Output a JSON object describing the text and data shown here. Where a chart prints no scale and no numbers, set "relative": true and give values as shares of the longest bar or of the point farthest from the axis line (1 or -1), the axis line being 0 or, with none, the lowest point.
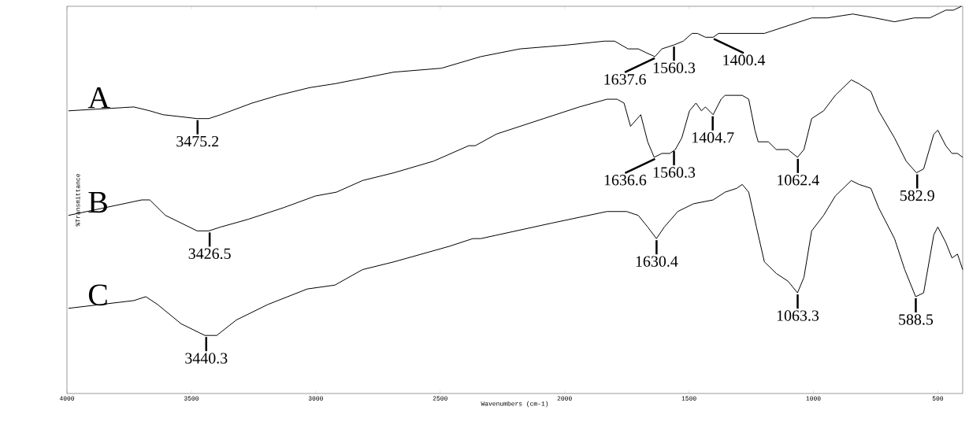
{
  "chart_data": {
    "type": "line",
    "relative": true,
    "xlabel": "Wavenumbers (cm-1)",
    "ylabel": "%Transmittance",
    "xlim": [
      4000,
      400
    ],
    "xticks": [
      4000,
      3500,
      3000,
      2500,
      2000,
      1500,
      1000,
      500
    ],
    "series": [
      {
        "name": "A",
        "color": "#000000",
        "x": [
          3994,
          3731,
          3667,
          3614,
          3477,
          3430,
          3382,
          3256,
          3151,
          3024,
          2923,
          2844,
          2686,
          2495,
          2337,
          2179,
          1989,
          1840,
          1799,
          1745,
          1704,
          1672,
          1637,
          1609,
          1561,
          1523,
          1488,
          1466,
          1434,
          1403,
          1381,
          1355,
          1229,
          1197,
          1102,
          1007,
          943,
          842,
          753,
          674,
          595,
          532,
          468,
          437,
          405
        ],
        "values": [
          0.73,
          0.74,
          0.73,
          0.72,
          0.71,
          0.71,
          0.72,
          0.75,
          0.77,
          0.79,
          0.8,
          0.81,
          0.83,
          0.84,
          0.87,
          0.89,
          0.9,
          0.91,
          0.91,
          0.89,
          0.89,
          0.88,
          0.87,
          0.89,
          0.9,
          0.91,
          0.93,
          0.93,
          0.92,
          0.92,
          0.93,
          0.93,
          0.93,
          0.93,
          0.95,
          0.97,
          0.97,
          0.98,
          0.97,
          0.96,
          0.97,
          0.97,
          0.99,
          0.99,
          1
        ]
      },
      {
        "name": "B",
        "color": "#000000",
        "x": [
          3994,
          3699,
          3667,
          3604,
          3477,
          3430,
          3382,
          3271,
          3129,
          3002,
          2917,
          2812,
          2686,
          2527,
          2385,
          2359,
          2274,
          2084,
          1941,
          1830,
          1789,
          1761,
          1735,
          1694,
          1666,
          1640,
          1609,
          1577,
          1555,
          1529,
          1498,
          1472,
          1450,
          1434,
          1403,
          1371,
          1355,
          1317,
          1286,
          1260,
          1235,
          1222,
          1181,
          1149,
          1102,
          1064,
          1038,
          1007,
          959,
          912,
          848,
          817,
          769,
          738,
          674,
          627,
          586,
          557,
          516,
          500,
          468,
          443,
          421,
          400
        ],
        "values": [
          0.46,
          0.5,
          0.5,
          0.46,
          0.42,
          0.42,
          0.43,
          0.45,
          0.48,
          0.51,
          0.52,
          0.55,
          0.57,
          0.6,
          0.64,
          0.64,
          0.67,
          0.71,
          0.74,
          0.76,
          0.76,
          0.75,
          0.69,
          0.72,
          0.65,
          0.61,
          0.62,
          0.62,
          0.63,
          0.66,
          0.73,
          0.75,
          0.73,
          0.74,
          0.72,
          0.76,
          0.77,
          0.77,
          0.77,
          0.76,
          0.68,
          0.65,
          0.65,
          0.63,
          0.63,
          0.61,
          0.63,
          0.71,
          0.73,
          0.77,
          0.81,
          0.8,
          0.78,
          0.73,
          0.66,
          0.6,
          0.57,
          0.58,
          0.67,
          0.68,
          0.64,
          0.62,
          0.62,
          0.61
        ]
      },
      {
        "name": "C",
        "color": "#000000",
        "x": [
          3994,
          3731,
          3683,
          3636,
          3541,
          3446,
          3398,
          3319,
          3192,
          3034,
          2923,
          2812,
          2686,
          2464,
          2369,
          2337,
          2052,
          1830,
          1751,
          1704,
          1666,
          1631,
          1599,
          1545,
          1482,
          1403,
          1355,
          1308,
          1286,
          1260,
          1229,
          1197,
          1149,
          1102,
          1064,
          1038,
          1007,
          959,
          912,
          848,
          817,
          769,
          738,
          674,
          633,
          589,
          557,
          516,
          500,
          468,
          443,
          421,
          400
        ],
        "values": [
          0.22,
          0.24,
          0.25,
          0.23,
          0.18,
          0.15,
          0.15,
          0.19,
          0.23,
          0.27,
          0.28,
          0.32,
          0.34,
          0.38,
          0.4,
          0.4,
          0.44,
          0.47,
          0.47,
          0.46,
          0.43,
          0.4,
          0.43,
          0.47,
          0.49,
          0.5,
          0.52,
          0.53,
          0.54,
          0.52,
          0.43,
          0.34,
          0.31,
          0.29,
          0.26,
          0.3,
          0.42,
          0.46,
          0.51,
          0.55,
          0.54,
          0.53,
          0.48,
          0.4,
          0.32,
          0.25,
          0.26,
          0.41,
          0.43,
          0.39,
          0.35,
          0.36,
          0.32
        ]
      }
    ],
    "annotations": [
      {
        "text": "3475.2",
        "x": 3475.2,
        "y": 0.71
      },
      {
        "text": "1637.6",
        "x": 1637.6,
        "y": 0.87
      },
      {
        "text": "1560.3",
        "x": 1560.3,
        "y": 0.9
      },
      {
        "text": "1400.4",
        "x": 1400.4,
        "y": 0.92
      },
      {
        "text": "3426.5",
        "x": 3426.5,
        "y": 0.42
      },
      {
        "text": "1636.6",
        "x": 1636.6,
        "y": 0.61
      },
      {
        "text": "1560.3",
        "x": 1560.3,
        "y": 0.63
      },
      {
        "text": "1404.7",
        "x": 1404.7,
        "y": 0.72
      },
      {
        "text": "1062.4",
        "x": 1062.4,
        "y": 0.61
      },
      {
        "text": "582.9",
        "x": 582.9,
        "y": 0.57
      },
      {
        "text": "3440.3",
        "x": 3440.3,
        "y": 0.15
      },
      {
        "text": "1630.4",
        "x": 1630.4,
        "y": 0.4
      },
      {
        "text": "1063.3",
        "x": 1063.3,
        "y": 0.26
      },
      {
        "text": "588.5",
        "x": 588.5,
        "y": 0.25
      }
    ]
  }
}
